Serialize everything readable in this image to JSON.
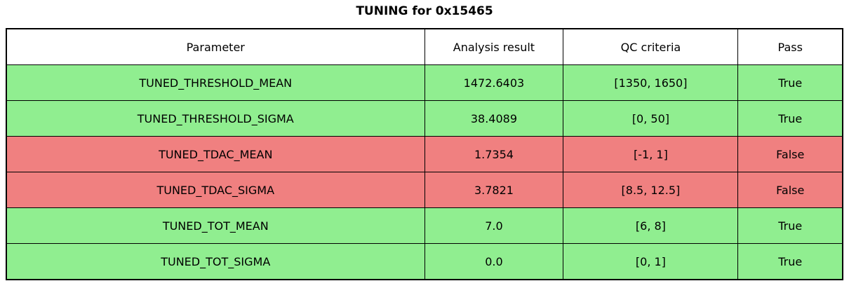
{
  "title": "TUNING for 0x15465",
  "colors": {
    "pass_row": "#90EE90",
    "fail_row": "#F08080",
    "header_bg": "#FFFFFF",
    "border": "#000000",
    "text": "#000000"
  },
  "table": {
    "columns": [
      "Parameter",
      "Analysis result",
      "QC criteria",
      "Pass"
    ],
    "rows": [
      {
        "parameter": "TUNED_THRESHOLD_MEAN",
        "result": "1472.6403",
        "criteria": "[1350, 1650]",
        "pass": "True",
        "status": "pass"
      },
      {
        "parameter": "TUNED_THRESHOLD_SIGMA",
        "result": "38.4089",
        "criteria": "[0, 50]",
        "pass": "True",
        "status": "pass"
      },
      {
        "parameter": "TUNED_TDAC_MEAN",
        "result": "1.7354",
        "criteria": "[-1, 1]",
        "pass": "False",
        "status": "fail"
      },
      {
        "parameter": "TUNED_TDAC_SIGMA",
        "result": "3.7821",
        "criteria": "[8.5, 12.5]",
        "pass": "False",
        "status": "fail"
      },
      {
        "parameter": "TUNED_TOT_MEAN",
        "result": "7.0",
        "criteria": "[6, 8]",
        "pass": "True",
        "status": "pass"
      },
      {
        "parameter": "TUNED_TOT_SIGMA",
        "result": "0.0",
        "criteria": "[0, 1]",
        "pass": "True",
        "status": "pass"
      }
    ]
  },
  "chart_data": {
    "type": "table",
    "title": "TUNING for 0x15465",
    "columns": [
      "Parameter",
      "Analysis result",
      "QC criteria",
      "Pass"
    ],
    "rows": [
      [
        "TUNED_THRESHOLD_MEAN",
        1472.6403,
        "[1350, 1650]",
        true
      ],
      [
        "TUNED_THRESHOLD_SIGMA",
        38.4089,
        "[0, 50]",
        true
      ],
      [
        "TUNED_TDAC_MEAN",
        1.7354,
        "[-1, 1]",
        false
      ],
      [
        "TUNED_TDAC_SIGMA",
        3.7821,
        "[8.5, 12.5]",
        false
      ],
      [
        "TUNED_TOT_MEAN",
        7.0,
        "[6, 8]",
        true
      ],
      [
        "TUNED_TOT_SIGMA",
        0.0,
        "[0, 1]",
        true
      ]
    ],
    "row_status_colors": {
      "pass": "#90EE90",
      "fail": "#F08080"
    },
    "legend_position": "none",
    "grid": true
  }
}
